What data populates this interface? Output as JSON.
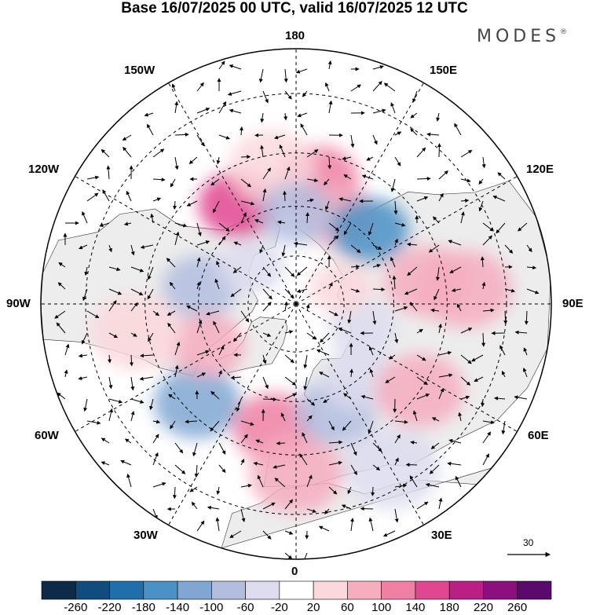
{
  "title": "Base 16/07/2025 00 UTC, valid 16/07/2025 12 UTC",
  "brand": "MODES",
  "brand_mark": "®",
  "longitude_labels": {
    "top": "180",
    "bottom": "0",
    "left": "90W",
    "right": "90E",
    "upper_left_1": "150W",
    "upper_left_2": "120W",
    "upper_right_1": "150E",
    "upper_right_2": "120E",
    "lower_left_1": "60W",
    "lower_left_2": "30W",
    "lower_right_1": "60E",
    "lower_right_2": "30E"
  },
  "reference_vector_label": "30",
  "colorbar": {
    "ticks": [
      "-260",
      "-220",
      "-180",
      "-140",
      "-100",
      "-60",
      "-20",
      "20",
      "60",
      "100",
      "140",
      "180",
      "220",
      "260"
    ],
    "colors": [
      "#0d2a48",
      "#104c7d",
      "#1f6fab",
      "#4a92c6",
      "#7fa7d1",
      "#b3bedf",
      "#dcdcee",
      "#ffffff",
      "#fbd8dc",
      "#f6adbe",
      "#ef7fa3",
      "#e04790",
      "#bb1f86",
      "#8d0e7e",
      "#5a0a6b"
    ]
  },
  "map": {
    "projection": "north polar stereographic",
    "land_color": "#ededed",
    "anomaly_patches": [
      {
        "lon": 170,
        "lat": 52,
        "value": 120
      },
      {
        "lon": 155,
        "lat": 60,
        "value": 70
      },
      {
        "lon": -150,
        "lat": 55,
        "value": 150
      },
      {
        "lon": -170,
        "lat": 48,
        "value": 40
      },
      {
        "lon": 135,
        "lat": 58,
        "value": -150
      },
      {
        "lon": -180,
        "lat": 62,
        "value": -90
      },
      {
        "lon": 100,
        "lat": 50,
        "value": 80
      },
      {
        "lon": 95,
        "lat": 40,
        "value": 60
      },
      {
        "lon": -100,
        "lat": 60,
        "value": -90
      },
      {
        "lon": -130,
        "lat": 72,
        "value": -60
      },
      {
        "lon": -45,
        "lat": 48,
        "value": -130
      },
      {
        "lon": -65,
        "lat": 60,
        "value": 60
      },
      {
        "lon": -80,
        "lat": 42,
        "value": 50
      },
      {
        "lon": -10,
        "lat": 52,
        "value": 110
      },
      {
        "lon": 0,
        "lat": 40,
        "value": 80
      },
      {
        "lon": 20,
        "lat": 55,
        "value": -90
      },
      {
        "lon": 40,
        "lat": 60,
        "value": -60
      },
      {
        "lon": 55,
        "lat": 45,
        "value": 60
      },
      {
        "lon": 30,
        "lat": 35,
        "value": -30
      },
      {
        "lon": 70,
        "lat": 68,
        "value": -50
      },
      {
        "lon": 110,
        "lat": 75,
        "value": 40
      }
    ]
  }
}
